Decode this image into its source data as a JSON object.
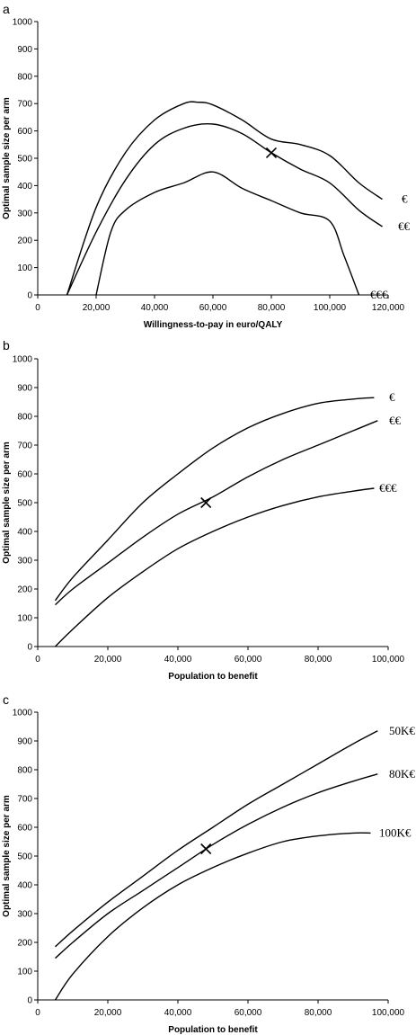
{
  "chart_data": [
    {
      "panel_label": "a",
      "type": "line",
      "title": "",
      "xlabel": "Willingness-to-pay in euro/QALY",
      "ylabel": "Optimal sample size per arm",
      "xlim": [
        0,
        120000
      ],
      "ylim": [
        0,
        1000
      ],
      "x_ticks": [
        0,
        20000,
        40000,
        60000,
        80000,
        100000,
        120000
      ],
      "x_tick_labels": [
        "0",
        "20,000",
        "40,000",
        "60,000",
        "80,000",
        "100,000",
        "120,000"
      ],
      "y_ticks": [
        0,
        100,
        200,
        300,
        400,
        500,
        600,
        700,
        800,
        900,
        1000
      ],
      "y_tick_labels": [
        "0",
        "100",
        "200",
        "300",
        "400",
        "500",
        "600",
        "700",
        "800",
        "900",
        "1000"
      ],
      "grid": false,
      "legend": "none",
      "series": [
        {
          "name": "€",
          "x": [
            10000,
            20000,
            30000,
            40000,
            50000,
            55000,
            60000,
            70000,
            80000,
            90000,
            100000,
            110000,
            118000
          ],
          "y": [
            0,
            320,
            520,
            640,
            700,
            705,
            695,
            640,
            570,
            550,
            510,
            410,
            350
          ]
        },
        {
          "name": "€€",
          "x": [
            10000,
            20000,
            30000,
            40000,
            50000,
            60000,
            70000,
            80000,
            90000,
            100000,
            110000,
            118000
          ],
          "y": [
            0,
            230,
            420,
            550,
            610,
            625,
            590,
            520,
            460,
            410,
            310,
            250
          ]
        },
        {
          "name": "€€€",
          "x": [
            20000,
            25000,
            30000,
            40000,
            50000,
            60000,
            70000,
            80000,
            90000,
            100000,
            105000,
            110000
          ],
          "y": [
            0,
            230,
            310,
            375,
            410,
            450,
            390,
            345,
            300,
            270,
            140,
            0
          ]
        }
      ],
      "marker": {
        "symbol": "×",
        "x": 80000,
        "y": 520
      }
    },
    {
      "panel_label": "b",
      "type": "line",
      "title": "",
      "xlabel": "Population to benefit",
      "ylabel": "Optimal sample size per arm",
      "xlim": [
        0,
        100000
      ],
      "ylim": [
        0,
        1000
      ],
      "x_ticks": [
        0,
        20000,
        40000,
        60000,
        80000,
        100000
      ],
      "x_tick_labels": [
        "0",
        "20,000",
        "40,000",
        "60,000",
        "80,000",
        "100,000"
      ],
      "y_ticks": [
        0,
        100,
        200,
        300,
        400,
        500,
        600,
        700,
        800,
        900,
        1000
      ],
      "y_tick_labels": [
        "0",
        "100",
        "200",
        "300",
        "400",
        "500",
        "600",
        "700",
        "800",
        "900",
        "1000"
      ],
      "grid": false,
      "legend": "none",
      "series": [
        {
          "name": "€",
          "x": [
            5000,
            10000,
            20000,
            30000,
            40000,
            50000,
            60000,
            70000,
            80000,
            90000,
            96000
          ],
          "y": [
            160,
            240,
            370,
            500,
            600,
            690,
            760,
            810,
            845,
            860,
            865
          ]
        },
        {
          "name": "€€",
          "x": [
            5000,
            10000,
            20000,
            30000,
            40000,
            50000,
            60000,
            70000,
            80000,
            90000,
            97000
          ],
          "y": [
            145,
            200,
            290,
            380,
            460,
            520,
            590,
            650,
            700,
            750,
            785
          ]
        },
        {
          "name": "€€€",
          "x": [
            5000,
            10000,
            20000,
            30000,
            40000,
            50000,
            60000,
            70000,
            80000,
            90000,
            96000
          ],
          "y": [
            0,
            60,
            170,
            260,
            340,
            400,
            450,
            490,
            520,
            540,
            550
          ]
        }
      ],
      "marker": {
        "symbol": "×",
        "x": 48000,
        "y": 500
      }
    },
    {
      "panel_label": "c",
      "type": "line",
      "title": "",
      "xlabel": "Population to benefit",
      "ylabel": "Optimal sample size per arm",
      "xlim": [
        0,
        100000
      ],
      "ylim": [
        0,
        1000
      ],
      "x_ticks": [
        0,
        20000,
        40000,
        60000,
        80000,
        100000
      ],
      "x_tick_labels": [
        "0",
        "20,000",
        "40,000",
        "60,000",
        "80,000",
        "100,000"
      ],
      "y_ticks": [
        0,
        100,
        200,
        300,
        400,
        500,
        600,
        700,
        800,
        900,
        1000
      ],
      "y_tick_labels": [
        "0",
        "100",
        "200",
        "300",
        "400",
        "500",
        "600",
        "700",
        "800",
        "900",
        "1000"
      ],
      "grid": false,
      "legend": "none",
      "series": [
        {
          "name": "50K€",
          "x": [
            5000,
            10000,
            20000,
            30000,
            40000,
            50000,
            60000,
            70000,
            80000,
            90000,
            97000
          ],
          "y": [
            185,
            240,
            340,
            430,
            520,
            600,
            680,
            750,
            820,
            890,
            935
          ]
        },
        {
          "name": "80K€",
          "x": [
            5000,
            10000,
            20000,
            30000,
            40000,
            50000,
            60000,
            70000,
            80000,
            90000,
            97000
          ],
          "y": [
            145,
            200,
            300,
            380,
            460,
            540,
            610,
            670,
            720,
            760,
            785
          ]
        },
        {
          "name": "100K€",
          "x": [
            5000,
            10000,
            20000,
            30000,
            40000,
            50000,
            60000,
            70000,
            80000,
            90000,
            95000
          ],
          "y": [
            0,
            90,
            220,
            320,
            400,
            460,
            510,
            550,
            570,
            580,
            580
          ]
        }
      ],
      "marker": {
        "symbol": "×",
        "x": 48000,
        "y": 525
      }
    }
  ]
}
